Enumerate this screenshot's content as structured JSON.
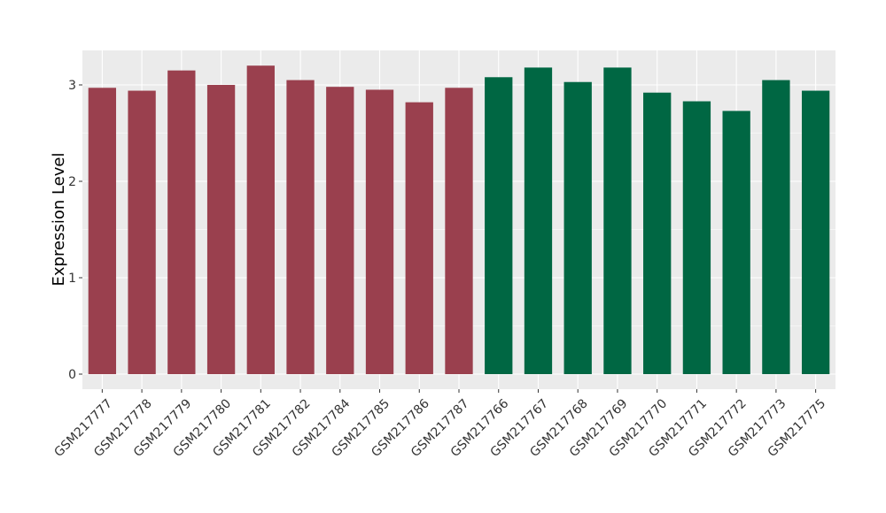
{
  "chart_data": {
    "type": "bar",
    "title": "",
    "xlabel": "",
    "ylabel": "Expression Level",
    "ylim": [
      0,
      3.35
    ],
    "yticks": [
      0,
      1,
      2,
      3
    ],
    "ytick_labels": [
      "0",
      "1",
      "2",
      "3"
    ],
    "grid": true,
    "categories": [
      "GSM217777",
      "GSM217778",
      "GSM217779",
      "GSM217780",
      "GSM217781",
      "GSM217782",
      "GSM217784",
      "GSM217785",
      "GSM217786",
      "GSM217787",
      "GSM217766",
      "GSM217767",
      "GSM217768",
      "GSM217769",
      "GSM217770",
      "GSM217771",
      "GSM217772",
      "GSM217773",
      "GSM217775"
    ],
    "values": [
      2.97,
      2.94,
      3.15,
      3.0,
      3.2,
      3.05,
      2.98,
      2.95,
      2.82,
      2.97,
      3.08,
      3.18,
      3.03,
      3.18,
      2.92,
      2.83,
      2.73,
      3.05,
      2.94
    ],
    "groups": [
      0,
      0,
      0,
      0,
      0,
      0,
      0,
      0,
      0,
      0,
      1,
      1,
      1,
      1,
      1,
      1,
      1,
      1,
      1
    ],
    "group_colors": [
      "#9a404e",
      "#006743"
    ],
    "panel_background": "#ebebeb",
    "grid_color": "#ffffff"
  }
}
